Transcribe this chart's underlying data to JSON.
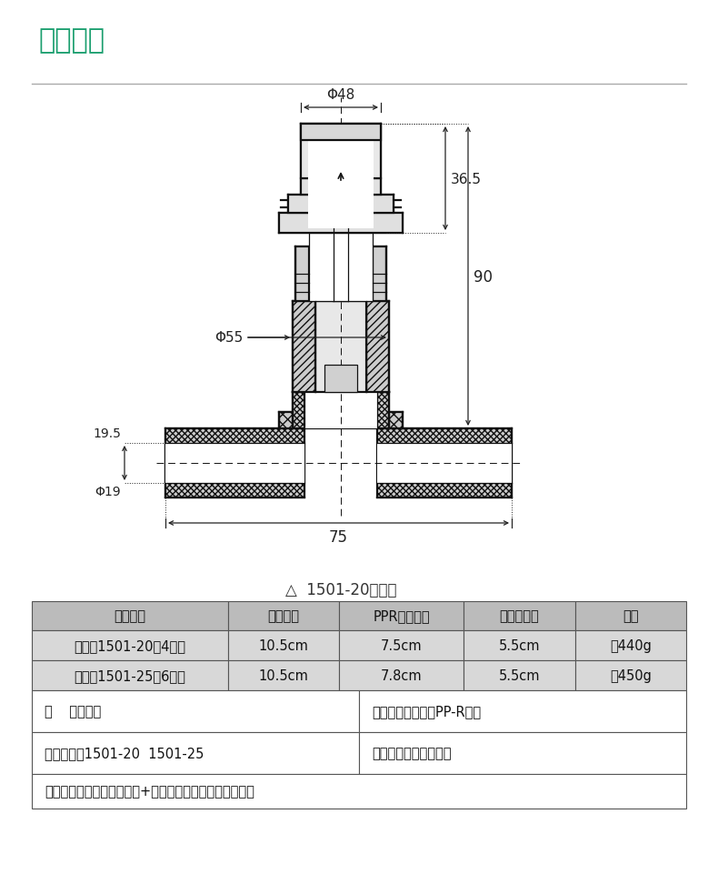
{
  "title": "产品参数",
  "title_color": "#1a9e6e",
  "title_fontsize": 22,
  "diagram_caption": "△  1501-20尺寸图",
  "table_headers": [
    "型号规格",
    "整体高度",
    "PPR部分长度",
    "装饰盖直径",
    "净重"
  ],
  "table_rows": [
    [
      "常规款1501-20（4分）",
      "10.5cm",
      "7.5cm",
      "5.5cm",
      "约440g"
    ],
    [
      "常规款1501-25（6分）",
      "10.5cm",
      "7.8cm",
      "5.5cm",
      "约450g"
    ]
  ],
  "table_extra": [
    [
      "品    牌：伟星",
      "产品名称：快开式PP-R暗阀"
    ],
    [
      "产品型号：1501-20  1501-25",
      "产品颜色：绿色、白色"
    ]
  ],
  "table_footer": "主体材质：阀芯部分为全铜+陶瓷阀芯、手柄部分为锌合金",
  "header_bg": "#bbbbbb",
  "row_bg": "#d8d8d8",
  "dim_48": "Φ48",
  "dim_36_5": "36.5",
  "dim_90": "90",
  "dim_55": "Φ55",
  "dim_19_5": "19.5",
  "dim_phi19": "Φ19",
  "dim_75": "75",
  "bg_color": "#ffffff"
}
